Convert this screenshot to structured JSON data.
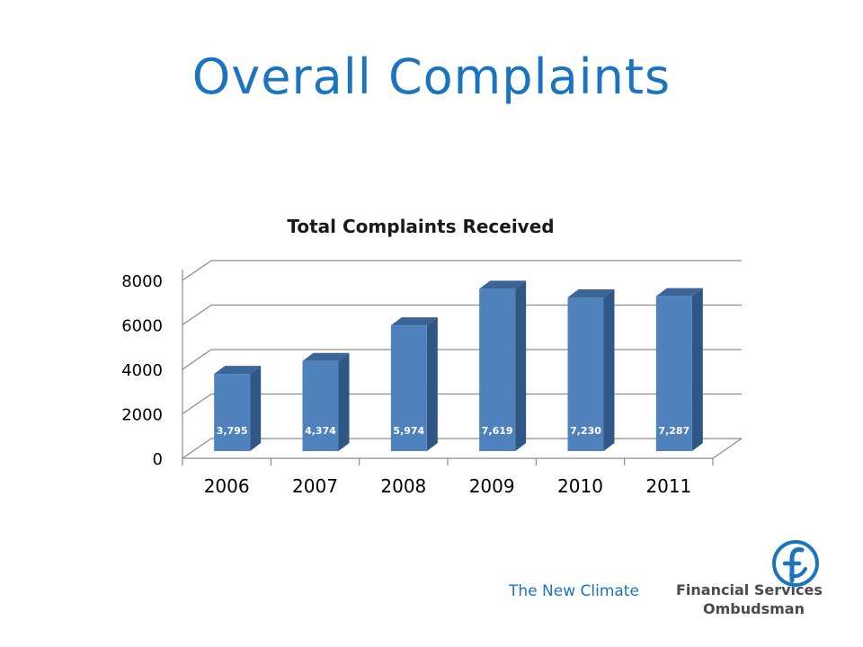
{
  "slide": {
    "title": "Overall Complaints",
    "tagline": "The New Climate",
    "logo": {
      "line1": "Financial Services",
      "line2": "Ombudsman",
      "icon": "fos-f-circle-icon",
      "color": "#1a74c0"
    }
  },
  "chart_data": {
    "type": "bar",
    "title": "Total Complaints Received",
    "categories": [
      "2006",
      "2007",
      "2008",
      "2009",
      "2010",
      "2011"
    ],
    "values": [
      3795,
      4374,
      5974,
      7619,
      7230,
      7287
    ],
    "data_labels": [
      "3,795",
      "4,374",
      "5,974",
      "7,619",
      "7,230",
      "7,287"
    ],
    "yticks": [
      0,
      2000,
      4000,
      6000,
      8000
    ],
    "ylim": [
      0,
      8000
    ],
    "grid": true,
    "style": "3d-column",
    "bar_color": "#4f81bd"
  }
}
